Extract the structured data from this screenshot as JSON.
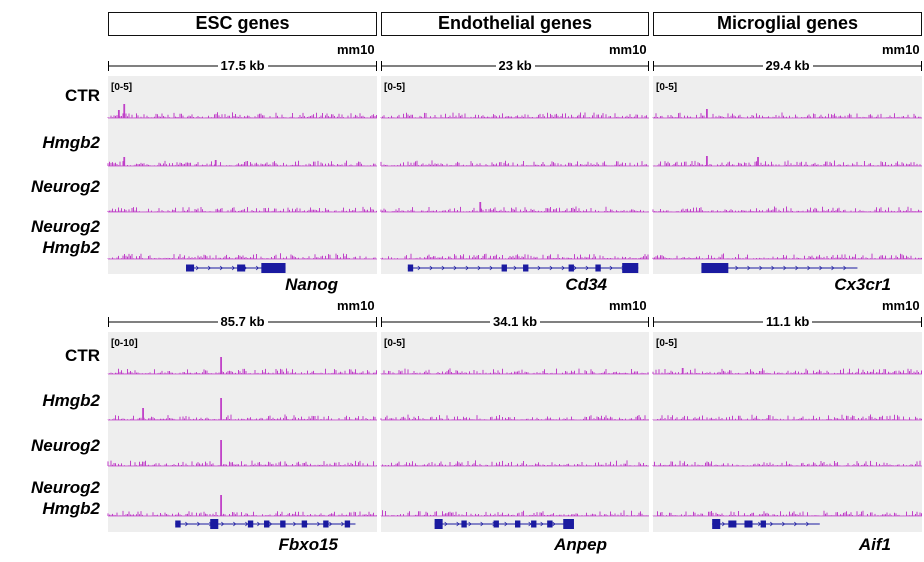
{
  "headers": [
    "ESC genes",
    "Endothelial genes",
    "Microglial genes"
  ],
  "row_labels": [
    [
      "CTR"
    ],
    [
      "Hmgb2"
    ],
    [
      "Neurog2"
    ],
    [
      "Neurog2",
      "Hmgb2"
    ]
  ],
  "assembly": "mm10",
  "colors": {
    "signal": "#c040c8",
    "gene": "#1a1aa0",
    "panel_bg": "#eeeeee"
  },
  "panels": [
    {
      "row": 0,
      "col": 0,
      "scale": "17.5 kb",
      "range": "[0-5]",
      "gene": "Nanog"
    },
    {
      "row": 0,
      "col": 1,
      "scale": "23 kb",
      "range": "[0-5]",
      "gene": "Cd34"
    },
    {
      "row": 0,
      "col": 2,
      "scale": "29.4 kb",
      "range": "[0-5]",
      "gene": "Cx3cr1"
    },
    {
      "row": 1,
      "col": 0,
      "scale": "85.7 kb",
      "range": "[0-10]",
      "gene": "Fbxo15"
    },
    {
      "row": 1,
      "col": 1,
      "scale": "34.1 kb",
      "range": "[0-5]",
      "gene": "Anpep"
    },
    {
      "row": 1,
      "col": 2,
      "scale": "11.1 kb",
      "range": "[0-5]",
      "gene": "Aif1"
    }
  ]
}
